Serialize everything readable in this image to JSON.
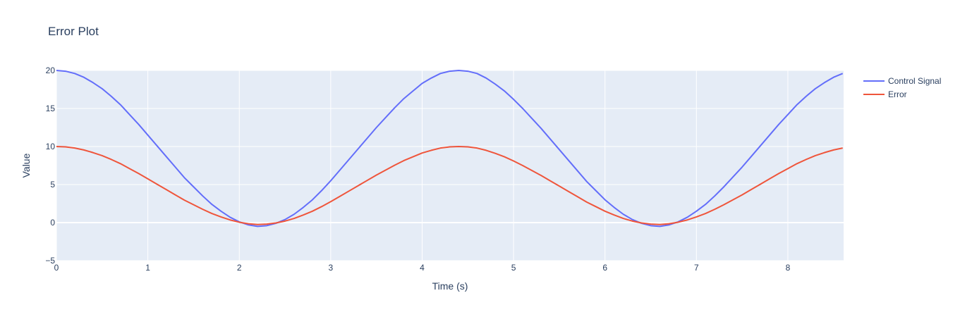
{
  "chart_data": {
    "type": "line",
    "title": "Error Plot",
    "xlabel": "Time (s)",
    "ylabel": "Value",
    "xlim": [
      0,
      8.61
    ],
    "ylim": [
      -5,
      20
    ],
    "x_ticks": [
      0,
      1,
      2,
      3,
      4,
      5,
      6,
      7,
      8
    ],
    "y_ticks": [
      -5,
      0,
      5,
      10,
      15,
      20
    ],
    "x_tick_labels": [
      "0",
      "1",
      "2",
      "3",
      "4",
      "5",
      "6",
      "7",
      "8"
    ],
    "y_tick_labels": [
      "−5",
      "0",
      "5",
      "10",
      "15",
      "20"
    ],
    "grid": true,
    "legend_position": "top-right",
    "colors": {
      "plot_bg": "#e5ecf6",
      "grid": "#ffffff",
      "text": "#2a3f5f"
    },
    "x": [
      0,
      0.1,
      0.2,
      0.3,
      0.4,
      0.5,
      0.6,
      0.7,
      0.8,
      0.9,
      1.0,
      1.1,
      1.2,
      1.3,
      1.4,
      1.5,
      1.6,
      1.7,
      1.8,
      1.9,
      2.0,
      2.1,
      2.2,
      2.3,
      2.4,
      2.5,
      2.6,
      2.7,
      2.8,
      2.9,
      3.0,
      3.1,
      3.2,
      3.3,
      3.4,
      3.5,
      3.6,
      3.7,
      3.8,
      3.9,
      4.0,
      4.1,
      4.2,
      4.3,
      4.4,
      4.5,
      4.6,
      4.7,
      4.8,
      4.9,
      5.0,
      5.1,
      5.2,
      5.3,
      5.4,
      5.5,
      5.6,
      5.7,
      5.8,
      5.9,
      6.0,
      6.1,
      6.2,
      6.3,
      6.4,
      6.5,
      6.6,
      6.7,
      6.8,
      6.9,
      7.0,
      7.1,
      7.2,
      7.3,
      7.4,
      7.5,
      7.6,
      7.7,
      7.8,
      7.9,
      8.0,
      8.1,
      8.2,
      8.3,
      8.4,
      8.5,
      8.6
    ],
    "series": [
      {
        "name": "Control Signal",
        "color": "#636efa",
        "values": [
          20.0,
          19.9,
          19.6,
          19.1,
          18.4,
          17.6,
          16.6,
          15.5,
          14.2,
          12.9,
          11.5,
          10.1,
          8.7,
          7.3,
          5.9,
          4.7,
          3.5,
          2.4,
          1.5,
          0.7,
          0.1,
          -0.3,
          -0.5,
          -0.4,
          -0.1,
          0.4,
          1.1,
          2.0,
          3.0,
          4.2,
          5.5,
          6.9,
          8.3,
          9.7,
          11.1,
          12.5,
          13.8,
          15.1,
          16.3,
          17.3,
          18.3,
          19.0,
          19.6,
          19.9,
          20.0,
          19.9,
          19.6,
          19.0,
          18.2,
          17.3,
          16.2,
          15.0,
          13.7,
          12.4,
          11.0,
          9.6,
          8.2,
          6.8,
          5.4,
          4.2,
          3.0,
          2.0,
          1.1,
          0.4,
          -0.1,
          -0.4,
          -0.5,
          -0.3,
          0.1,
          0.7,
          1.5,
          2.4,
          3.5,
          4.7,
          6.0,
          7.3,
          8.7,
          10.1,
          11.5,
          12.9,
          14.2,
          15.5,
          16.6,
          17.6,
          18.4,
          19.1,
          19.6
        ]
      },
      {
        "name": "Error",
        "color": "#ef553b",
        "values": [
          10.0,
          9.95,
          9.8,
          9.55,
          9.2,
          8.8,
          8.3,
          7.75,
          7.1,
          6.45,
          5.75,
          5.05,
          4.35,
          3.65,
          2.95,
          2.35,
          1.75,
          1.2,
          0.75,
          0.35,
          0.05,
          -0.15,
          -0.25,
          -0.2,
          -0.05,
          0.2,
          0.55,
          1.0,
          1.5,
          2.1,
          2.75,
          3.45,
          4.15,
          4.85,
          5.55,
          6.25,
          6.9,
          7.55,
          8.15,
          8.65,
          9.15,
          9.5,
          9.8,
          9.95,
          10.0,
          9.95,
          9.8,
          9.5,
          9.1,
          8.65,
          8.1,
          7.5,
          6.85,
          6.2,
          5.5,
          4.8,
          4.1,
          3.4,
          2.7,
          2.1,
          1.5,
          1.0,
          0.55,
          0.2,
          -0.05,
          -0.2,
          -0.25,
          -0.15,
          0.05,
          0.35,
          0.75,
          1.2,
          1.75,
          2.35,
          3.0,
          3.65,
          4.35,
          5.05,
          5.75,
          6.45,
          7.1,
          7.75,
          8.3,
          8.8,
          9.2,
          9.55,
          9.8
        ]
      }
    ]
  }
}
